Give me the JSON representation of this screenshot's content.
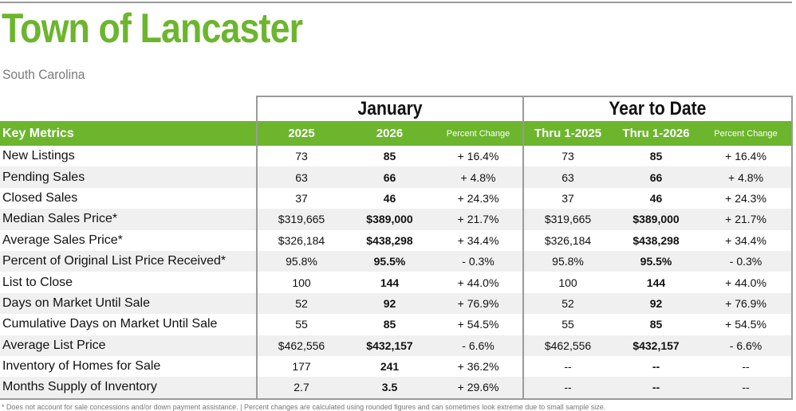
{
  "header": {
    "title": "Town of Lancaster",
    "subtitle": "South Carolina"
  },
  "table": {
    "groups": {
      "monthly": "January",
      "ytd": "Year to Date"
    },
    "columns": {
      "metric": "Key Metrics",
      "y2025": "2025",
      "y2026": "2026",
      "pct_monthly": "Percent Change",
      "thru2025": "Thru 1-2025",
      "thru2026": "Thru 1-2026",
      "pct_ytd": "Percent Change"
    },
    "rows": [
      [
        "New Listings",
        "73",
        "85",
        "+ 16.4%",
        "73",
        "85",
        "+ 16.4%"
      ],
      [
        "Pending Sales",
        "63",
        "66",
        "+ 4.8%",
        "63",
        "66",
        "+ 4.8%"
      ],
      [
        "Closed Sales",
        "37",
        "46",
        "+ 24.3%",
        "37",
        "46",
        "+ 24.3%"
      ],
      [
        "Median Sales Price*",
        "$319,665",
        "$389,000",
        "+ 21.7%",
        "$319,665",
        "$389,000",
        "+ 21.7%"
      ],
      [
        "Average Sales Price*",
        "$326,184",
        "$438,298",
        "+ 34.4%",
        "$326,184",
        "$438,298",
        "+ 34.4%"
      ],
      [
        "Percent of Original List Price Received*",
        "95.8%",
        "95.5%",
        "- 0.3%",
        "95.8%",
        "95.5%",
        "- 0.3%"
      ],
      [
        "List to Close",
        "100",
        "144",
        "+ 44.0%",
        "100",
        "144",
        "+ 44.0%"
      ],
      [
        "Days on Market Until Sale",
        "52",
        "92",
        "+ 76.9%",
        "52",
        "92",
        "+ 76.9%"
      ],
      [
        "Cumulative Days on Market Until Sale",
        "55",
        "85",
        "+ 54.5%",
        "55",
        "85",
        "+ 54.5%"
      ],
      [
        "Average List Price",
        "$462,556",
        "$432,157",
        "- 6.6%",
        "$462,556",
        "$432,157",
        "- 6.6%"
      ],
      [
        "Inventory of Homes for Sale",
        "177",
        "241",
        "+ 36.2%",
        "--",
        "--",
        "--"
      ],
      [
        "Months Supply of Inventory",
        "2.7",
        "3.5",
        "+ 29.6%",
        "--",
        "--",
        "--"
      ]
    ]
  },
  "footnote": "* Does not account for sale concessions and/or down payment assistance. | Percent changes are calculated using rounded figures and can sometimes look extreme due to small sample size."
}
